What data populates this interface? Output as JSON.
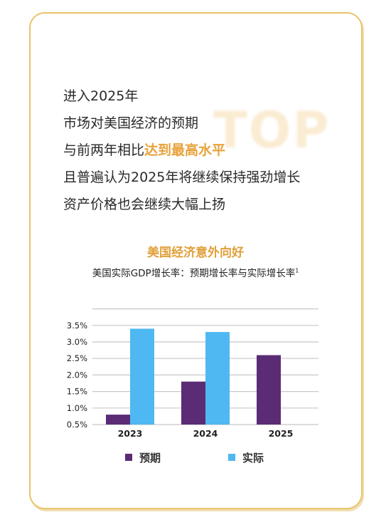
{
  "intro": {
    "line1": "进入2025年",
    "line2": "市场对美国经济的预期",
    "line3_prefix": "与前两年相比",
    "line3_highlight": "达到最高水平",
    "line4": "且普遍认为2025年将继续保持强劲增长",
    "line5": "资产价格也会继续大幅上扬"
  },
  "watermark": "TOP",
  "colors": {
    "accent": "#e0a03a",
    "forecast": "#5b2c75",
    "actual": "#4fb8f2",
    "border": "#e8c468"
  },
  "chart_data": {
    "type": "bar",
    "title": "美国经济意外向好",
    "subtitle": "美国实际GDP增长率：预期增长率与实际增长率",
    "subtitle_sup": "1",
    "categories": [
      "2023",
      "2024",
      "2025"
    ],
    "series": [
      {
        "name": "预期",
        "values": [
          0.8,
          1.8,
          2.6
        ]
      },
      {
        "name": "实际",
        "values": [
          3.4,
          3.3,
          null
        ]
      }
    ],
    "yticks": [
      "3.5%",
      "3.0%",
      "2.5%",
      "2.0%",
      "1.5%",
      "1.0%",
      "0.5%"
    ],
    "ytick_values": [
      3.5,
      3.0,
      2.5,
      2.0,
      1.5,
      1.0,
      0.5
    ],
    "ylim": [
      0.5,
      4.0
    ],
    "grid": "horizontal",
    "legend": "bottom"
  }
}
